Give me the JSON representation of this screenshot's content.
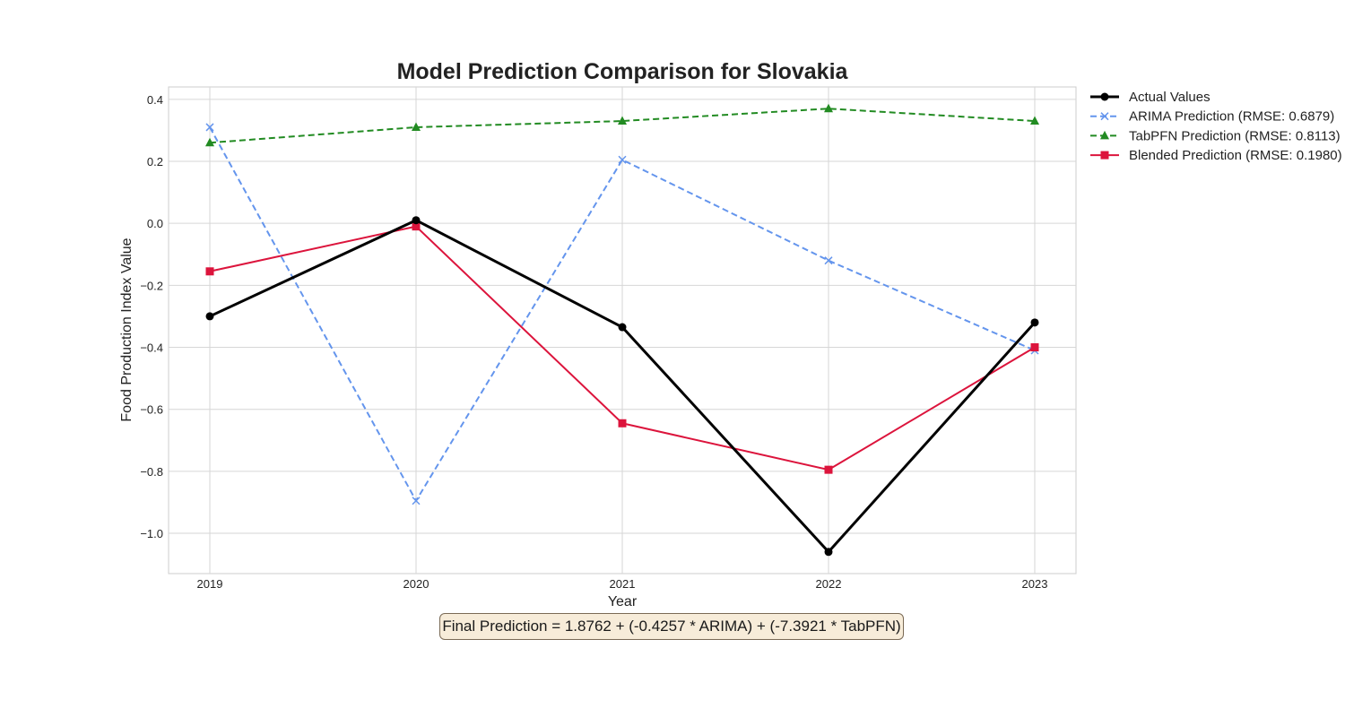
{
  "chart_data": {
    "type": "line",
    "title": "Model Prediction Comparison for Slovakia",
    "xlabel": "Year",
    "ylabel": "Food Production Index Value",
    "x": [
      "2019",
      "2020",
      "2021",
      "2022",
      "2023"
    ],
    "yticks": [
      "0.4",
      "0.2",
      "0.0",
      "−0.2",
      "−0.4",
      "−0.6",
      "−0.8",
      "−1.0"
    ],
    "ytick_values": [
      0.4,
      0.2,
      0.0,
      -0.2,
      -0.4,
      -0.6,
      -0.8,
      -1.0
    ],
    "ylim": [
      -1.13,
      0.44
    ],
    "grid": true,
    "legend_position": "outside-top-right",
    "series": [
      {
        "name": "Actual Values",
        "values": [
          -0.3,
          0.01,
          -0.335,
          -1.06,
          -0.32
        ],
        "color": "#000000",
        "marker": "circle",
        "dashed": false
      },
      {
        "name": "ARIMA Prediction (RMSE: 0.6879)",
        "values": [
          0.31,
          -0.895,
          0.205,
          -0.12,
          -0.41
        ],
        "color": "#6495ed",
        "marker": "x",
        "dashed": true
      },
      {
        "name": "TabPFN Prediction (RMSE: 0.8113)",
        "values": [
          0.26,
          0.31,
          0.33,
          0.37,
          0.33
        ],
        "color": "#228b22",
        "marker": "triangle",
        "dashed": true
      },
      {
        "name": "Blended Prediction (RMSE: 0.1980)",
        "values": [
          -0.155,
          -0.01,
          -0.645,
          -0.795,
          -0.4
        ],
        "color": "#dc143c",
        "marker": "square",
        "dashed": false
      }
    ],
    "annotation": "Final Prediction = 1.8762 + (-0.4257 * ARIMA) + (-7.3921 * TabPFN)"
  }
}
